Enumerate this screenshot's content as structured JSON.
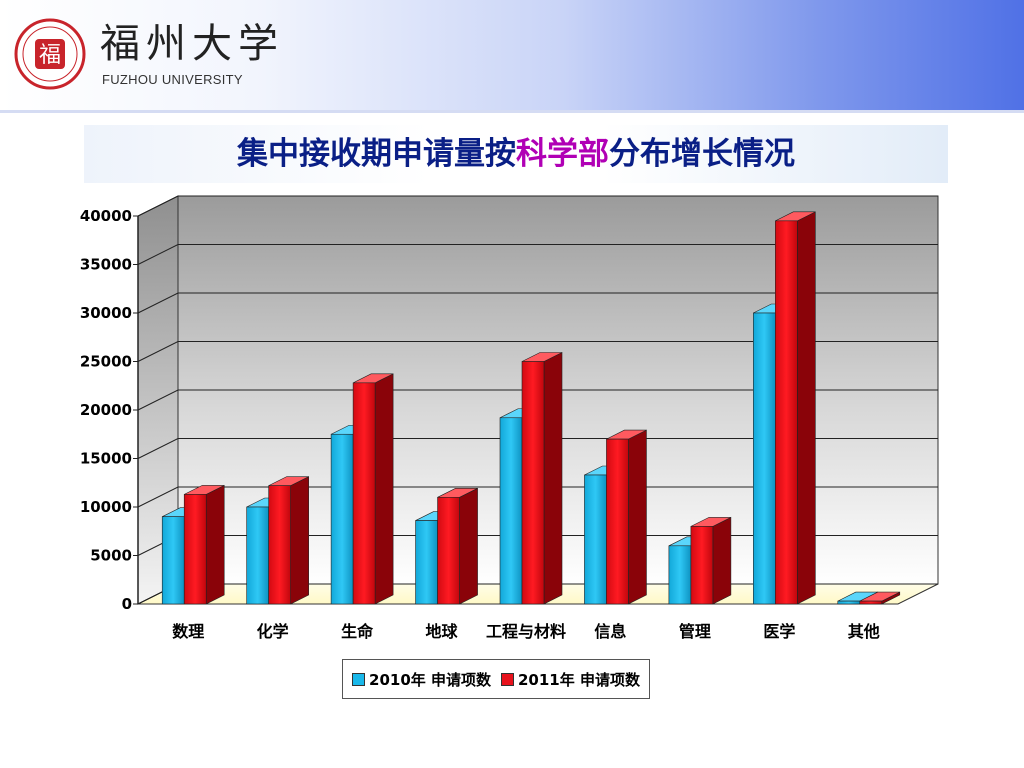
{
  "header": {
    "logo_cn": "福州大学",
    "logo_en": "FUZHOU UNIVERSITY",
    "seal_char": "福"
  },
  "title": {
    "prefix": "集中接收期申请量按",
    "accent": "科学部",
    "suffix": "分布增长情况"
  },
  "colors": {
    "series_2010": "#19b8ea",
    "series_2011": "#e8121c",
    "title": "#0a1f86",
    "accent": "#b000b5"
  },
  "chart_data": {
    "type": "bar",
    "style": "3d-clustered",
    "categories": [
      "数理",
      "化学",
      "生命",
      "地球",
      "工程与材料",
      "信息",
      "管理",
      "医学",
      "其他"
    ],
    "series": [
      {
        "name": "2010年 申请项数",
        "values": [
          9000,
          10000,
          17500,
          8600,
          19200,
          13300,
          6000,
          30000,
          300
        ]
      },
      {
        "name": "2011年 申请项数",
        "values": [
          11300,
          12200,
          22800,
          11000,
          25000,
          17000,
          8000,
          39500,
          300
        ]
      }
    ],
    "ylim": [
      0,
      40000
    ],
    "yticks": [
      0,
      5000,
      10000,
      15000,
      20000,
      25000,
      30000,
      35000,
      40000
    ],
    "grid": true,
    "legend": "bottom"
  }
}
